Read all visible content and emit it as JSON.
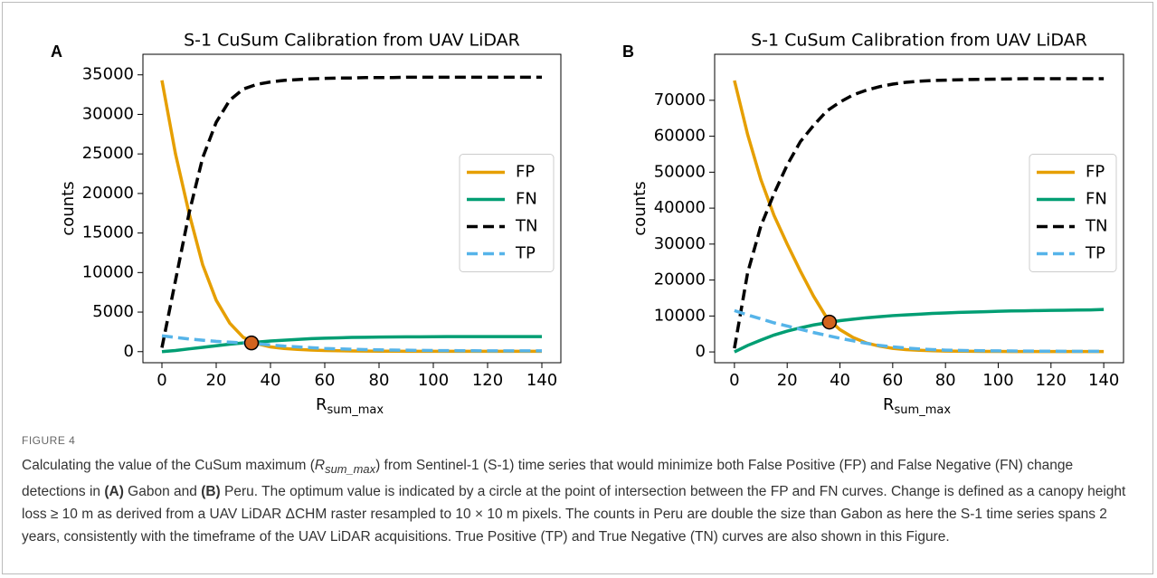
{
  "figure": {
    "label": "FIGURE 4",
    "caption": [
      "Calculating the value of the CuSum maximum (",
      "R",
      "sum_max",
      ") from Sentinel-1 (S-1) time series that would minimize both False Positive (FP) and False Negative (FN) change detections in ",
      "(A)",
      " Gabon and ",
      "(B)",
      " Peru. The optimum value is indicated by a circle at the point of intersection between the FP and FN curves. Change is defined as a canopy height loss ≥ 10 m as derived from a UAV LiDAR ΔCHM raster resampled to 10 × 10 m pixels. The counts in Peru are double the size than Gabon as here the S-1 time series spans 2 years, consistently with the timeframe of the UAV LiDAR acquisitions. True Positive (TP) and True Negative (TN) curves are also shown in this Figure."
    ]
  },
  "chart_data": [
    {
      "type": "line",
      "panel": "A",
      "title": "S-1 CuSum Calibration from UAV LiDAR",
      "ylabel": "counts",
      "xlabel": "R",
      "xlabel_sub": "sum_max",
      "x": [
        0,
        5,
        10,
        15,
        20,
        25,
        30,
        35,
        40,
        45,
        50,
        55,
        60,
        65,
        70,
        75,
        80,
        85,
        90,
        95,
        100,
        105,
        110,
        115,
        120,
        125,
        130,
        135,
        140
      ],
      "series": [
        {
          "name": "FP",
          "color": "#E69F00",
          "dash": false,
          "values": [
            34300,
            25000,
            17500,
            11000,
            6500,
            3600,
            1800,
            1000,
            600,
            400,
            280,
            200,
            150,
            110,
            90,
            70,
            60,
            55,
            50,
            50,
            50,
            50,
            50,
            50,
            50,
            50,
            50,
            50,
            50
          ]
        },
        {
          "name": "FN",
          "color": "#009E73",
          "dash": false,
          "values": [
            0,
            150,
            350,
            550,
            750,
            950,
            1100,
            1200,
            1350,
            1450,
            1550,
            1650,
            1700,
            1750,
            1800,
            1820,
            1840,
            1860,
            1870,
            1880,
            1890,
            1900,
            1900,
            1900,
            1900,
            1900,
            1900,
            1900,
            1900
          ]
        },
        {
          "name": "TN",
          "color": "#000000",
          "dash": true,
          "values": [
            500,
            9000,
            17500,
            24500,
            29000,
            31800,
            33200,
            33800,
            34100,
            34300,
            34400,
            34500,
            34550,
            34600,
            34600,
            34650,
            34650,
            34650,
            34700,
            34700,
            34700,
            34700,
            34700,
            34700,
            34700,
            34700,
            34700,
            34700,
            34700
          ]
        },
        {
          "name": "TP",
          "color": "#56B4E9",
          "dash": true,
          "values": [
            2000,
            1800,
            1600,
            1450,
            1300,
            1200,
            1100,
            1000,
            850,
            700,
            600,
            500,
            400,
            350,
            300,
            260,
            230,
            200,
            180,
            160,
            140,
            130,
            120,
            110,
            100,
            100,
            100,
            100,
            100
          ]
        }
      ],
      "marker": {
        "x": 33,
        "y": 1100,
        "color": "#D2641E"
      },
      "xlim": [
        -7,
        147
      ],
      "xticks": [
        0,
        20,
        40,
        60,
        80,
        100,
        120,
        140
      ],
      "ylim": [
        -1400,
        37600
      ],
      "yticks": [
        0,
        5000,
        10000,
        15000,
        20000,
        25000,
        30000,
        35000
      ],
      "legend": "center right"
    },
    {
      "type": "line",
      "panel": "B",
      "title": "S-1 CuSum Calibration from UAV LiDAR",
      "ylabel": "counts",
      "xlabel": "R",
      "xlabel_sub": "sum_max",
      "x": [
        0,
        5,
        10,
        15,
        20,
        25,
        30,
        35,
        40,
        45,
        50,
        55,
        60,
        65,
        70,
        75,
        80,
        85,
        90,
        95,
        100,
        105,
        110,
        115,
        120,
        125,
        130,
        135,
        140
      ],
      "series": [
        {
          "name": "FP",
          "color": "#E69F00",
          "dash": false,
          "values": [
            75500,
            60500,
            48000,
            38000,
            30000,
            22500,
            15500,
            9500,
            6200,
            4000,
            2500,
            1600,
            1000,
            650,
            450,
            330,
            250,
            200,
            170,
            150,
            130,
            120,
            110,
            100,
            100,
            100,
            100,
            100,
            100
          ]
        },
        {
          "name": "FN",
          "color": "#009E73",
          "dash": false,
          "values": [
            0,
            1800,
            3300,
            4700,
            5800,
            6700,
            7500,
            8100,
            8700,
            9100,
            9500,
            9800,
            10100,
            10300,
            10500,
            10700,
            10850,
            11000,
            11100,
            11200,
            11300,
            11400,
            11450,
            11500,
            11550,
            11600,
            11650,
            11700,
            11800
          ]
        },
        {
          "name": "TN",
          "color": "#000000",
          "dash": true,
          "values": [
            1000,
            22000,
            35000,
            44000,
            52000,
            58500,
            63000,
            67000,
            69500,
            71500,
            72800,
            73800,
            74500,
            75000,
            75300,
            75500,
            75600,
            75700,
            75800,
            75850,
            75900,
            75950,
            76000,
            76000,
            76000,
            76000,
            76000,
            76000,
            76000
          ]
        },
        {
          "name": "TP",
          "color": "#56B4E9",
          "dash": true,
          "values": [
            11500,
            10300,
            9200,
            8100,
            7200,
            6300,
            5400,
            4600,
            3800,
            3100,
            2400,
            1800,
            1400,
            1100,
            850,
            650,
            500,
            420,
            360,
            320,
            290,
            260,
            240,
            220,
            200,
            190,
            180,
            170,
            160
          ]
        }
      ],
      "marker": {
        "x": 36,
        "y": 8300,
        "color": "#D2641E"
      },
      "xlim": [
        -7.5,
        147.5
      ],
      "xticks": [
        0,
        20,
        40,
        60,
        80,
        100,
        120,
        140
      ],
      "ylim": [
        -3000,
        82800
      ],
      "yticks": [
        0,
        10000,
        20000,
        30000,
        40000,
        50000,
        60000,
        70000
      ],
      "legend": "center right"
    }
  ]
}
